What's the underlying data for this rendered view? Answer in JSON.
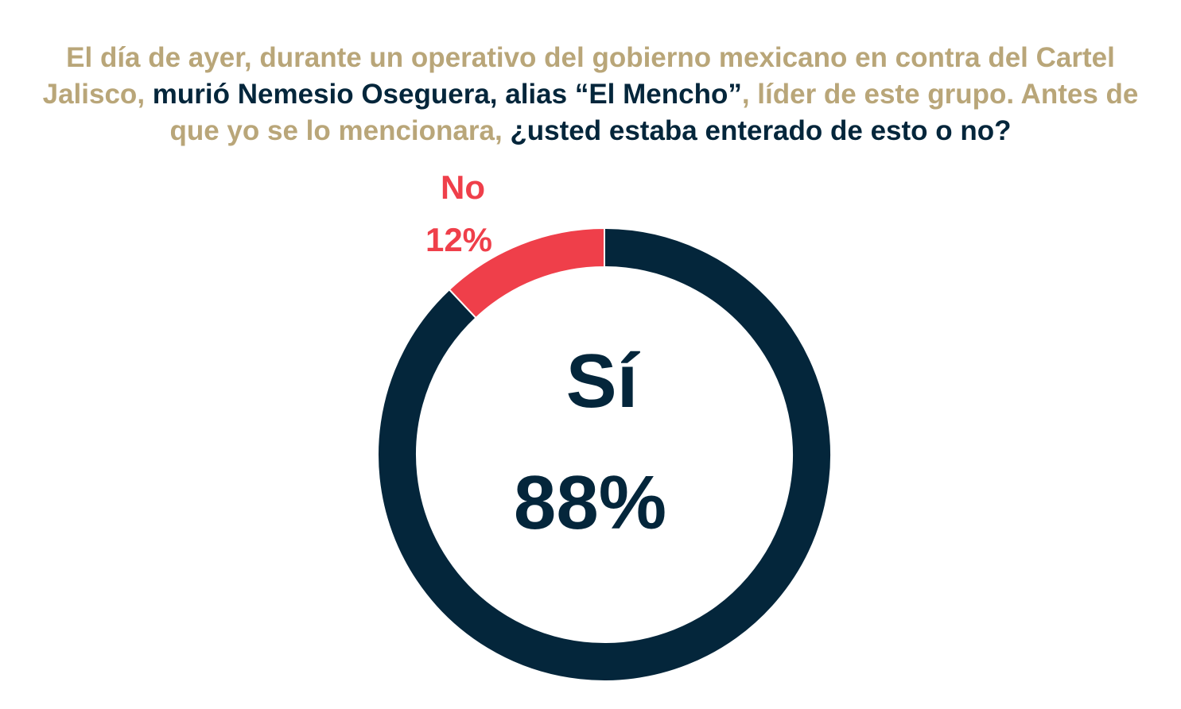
{
  "question": {
    "segments": [
      {
        "text": "El día de ayer, durante un operativo del gobierno mexicano en contra del Cartel Jalisco, ",
        "style": "gold"
      },
      {
        "text": "murió Nemesio Oseguera, alias “El Mencho”",
        "style": "navy"
      },
      {
        "text": ", líder de este grupo. Antes de que yo se lo mencionara, ",
        "style": "gold"
      },
      {
        "text": "¿usted estaba enterado de esto o no?",
        "style": "navy"
      }
    ]
  },
  "colors": {
    "gold": "#b9a679",
    "navy": "#04263b",
    "red": "#ef3f4a"
  },
  "chart_data": {
    "type": "pie",
    "variant": "donut",
    "slices": [
      {
        "label": "Sí",
        "value": 88,
        "display": "88%",
        "color": "#04263b"
      },
      {
        "label": "No",
        "value": 12,
        "display": "12%",
        "color": "#ef3f4a"
      }
    ]
  }
}
